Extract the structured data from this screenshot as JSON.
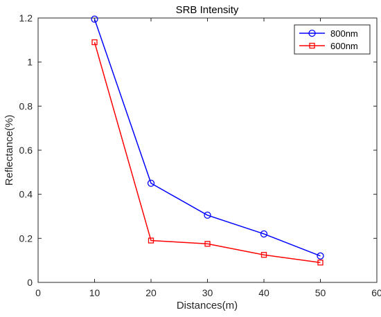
{
  "chart_data": {
    "type": "line",
    "title": "SRB Intensity",
    "xlabel": "Distances(m)",
    "ylabel": "Reflectance(%)",
    "xlim": [
      0,
      60
    ],
    "ylim": [
      0,
      1.2
    ],
    "xticks": [
      0,
      10,
      20,
      30,
      40,
      50,
      60
    ],
    "yticks": [
      0,
      0.2,
      0.4,
      0.6,
      0.8,
      1,
      1.2
    ],
    "grid": false,
    "legend_position": "top-right",
    "series": [
      {
        "name": "800nm",
        "color": "#0000ff",
        "marker": "circle",
        "x": [
          10,
          20,
          30,
          40,
          50
        ],
        "y": [
          1.195,
          0.45,
          0.305,
          0.22,
          0.12
        ]
      },
      {
        "name": "600nm",
        "color": "#ff0000",
        "marker": "square",
        "x": [
          10,
          20,
          30,
          40,
          50
        ],
        "y": [
          1.09,
          0.19,
          0.175,
          0.125,
          0.09
        ]
      }
    ]
  }
}
